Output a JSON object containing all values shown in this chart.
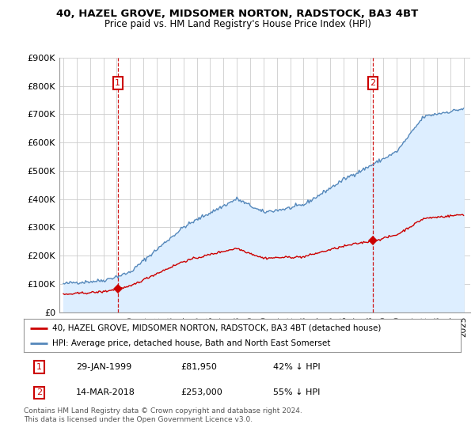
{
  "title": "40, HAZEL GROVE, MIDSOMER NORTON, RADSTOCK, BA3 4BT",
  "subtitle": "Price paid vs. HM Land Registry's House Price Index (HPI)",
  "ylim": [
    0,
    900000
  ],
  "yticks": [
    0,
    100000,
    200000,
    300000,
    400000,
    500000,
    600000,
    700000,
    800000,
    900000
  ],
  "ytick_labels": [
    "£0",
    "£100K",
    "£200K",
    "£300K",
    "£400K",
    "£500K",
    "£600K",
    "£700K",
    "£800K",
    "£900K"
  ],
  "xlim_start": 1994.7,
  "xlim_end": 2025.5,
  "sale1_x": 1999.08,
  "sale1_y": 81950,
  "sale1_label": "1",
  "sale2_x": 2018.21,
  "sale2_y": 253000,
  "sale2_label": "2",
  "red_color": "#cc0000",
  "blue_color": "#5588bb",
  "blue_fill_color": "#ddeeff",
  "legend_line1": "40, HAZEL GROVE, MIDSOMER NORTON, RADSTOCK, BA3 4BT (detached house)",
  "legend_line2": "HPI: Average price, detached house, Bath and North East Somerset",
  "table_row1": [
    "1",
    "29-JAN-1999",
    "£81,950",
    "42% ↓ HPI"
  ],
  "table_row2": [
    "2",
    "14-MAR-2018",
    "£253,000",
    "55% ↓ HPI"
  ],
  "footnote": "Contains HM Land Registry data © Crown copyright and database right 2024.\nThis data is licensed under the Open Government Licence v3.0.",
  "background_color": "#ffffff",
  "grid_color": "#cccccc"
}
